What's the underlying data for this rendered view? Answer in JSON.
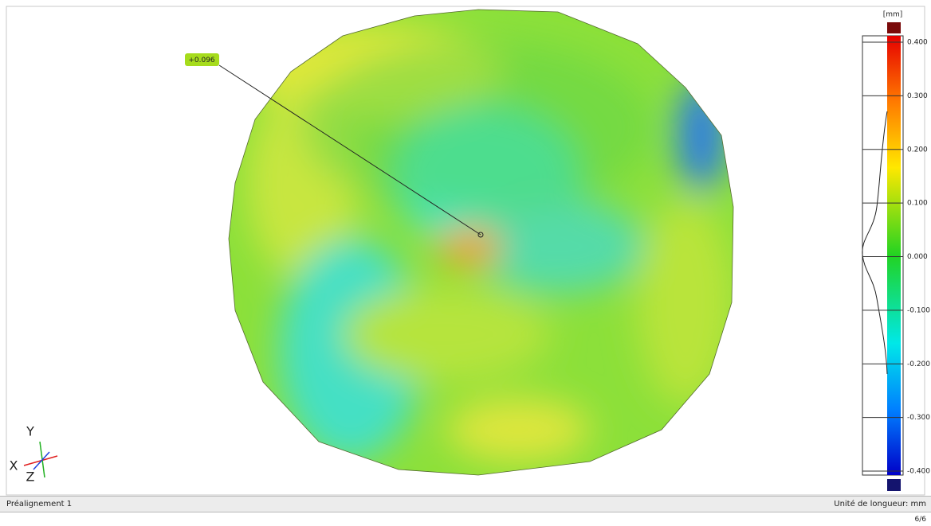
{
  "callout": {
    "label": "+0.096"
  },
  "color_scale": {
    "unit": "[mm]",
    "ticks": [
      "0.400",
      "0.300",
      "0.200",
      "0.100",
      "0.000",
      "-0.100",
      "-0.200",
      "-0.300",
      "-0.400"
    ]
  },
  "axes": {
    "y": "Y",
    "x": "X",
    "z": "Z"
  },
  "status_bar": {
    "left": "Préalignement 1",
    "right": "Unité de longueur: mm"
  },
  "page_indicator": "6/6"
}
